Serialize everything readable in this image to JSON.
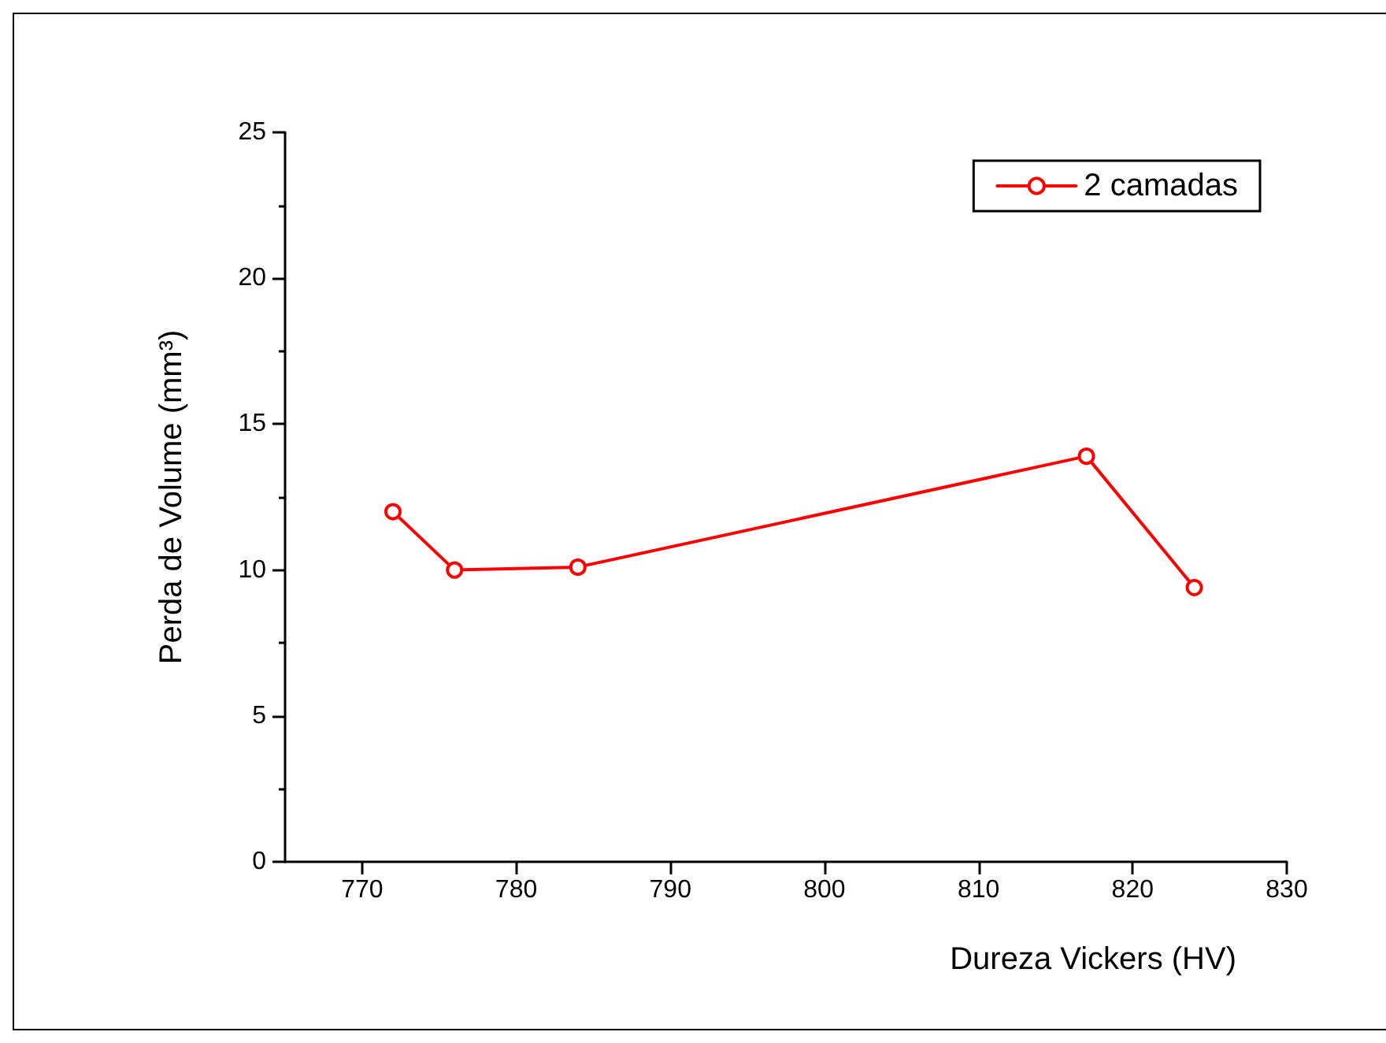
{
  "chart_data": {
    "type": "line",
    "xlabel": "Dureza Vickers (HV)",
    "ylabel": "Perda de Volume (mm³)",
    "x": [
      772,
      776,
      784,
      817,
      824
    ],
    "series": [
      {
        "name": "2 camadas",
        "color": "#ff0000",
        "values": [
          12,
          10,
          10.1,
          13.9,
          9.4
        ]
      }
    ],
    "xlim": [
      765,
      830
    ],
    "xticks": [
      770,
      780,
      790,
      800,
      810,
      820,
      830
    ],
    "ylim": [
      0,
      25
    ],
    "yticks": [
      0,
      5,
      10,
      15,
      20,
      25
    ],
    "marker": "circle",
    "line_style": "solid",
    "legend": "top right",
    "grid": false
  }
}
